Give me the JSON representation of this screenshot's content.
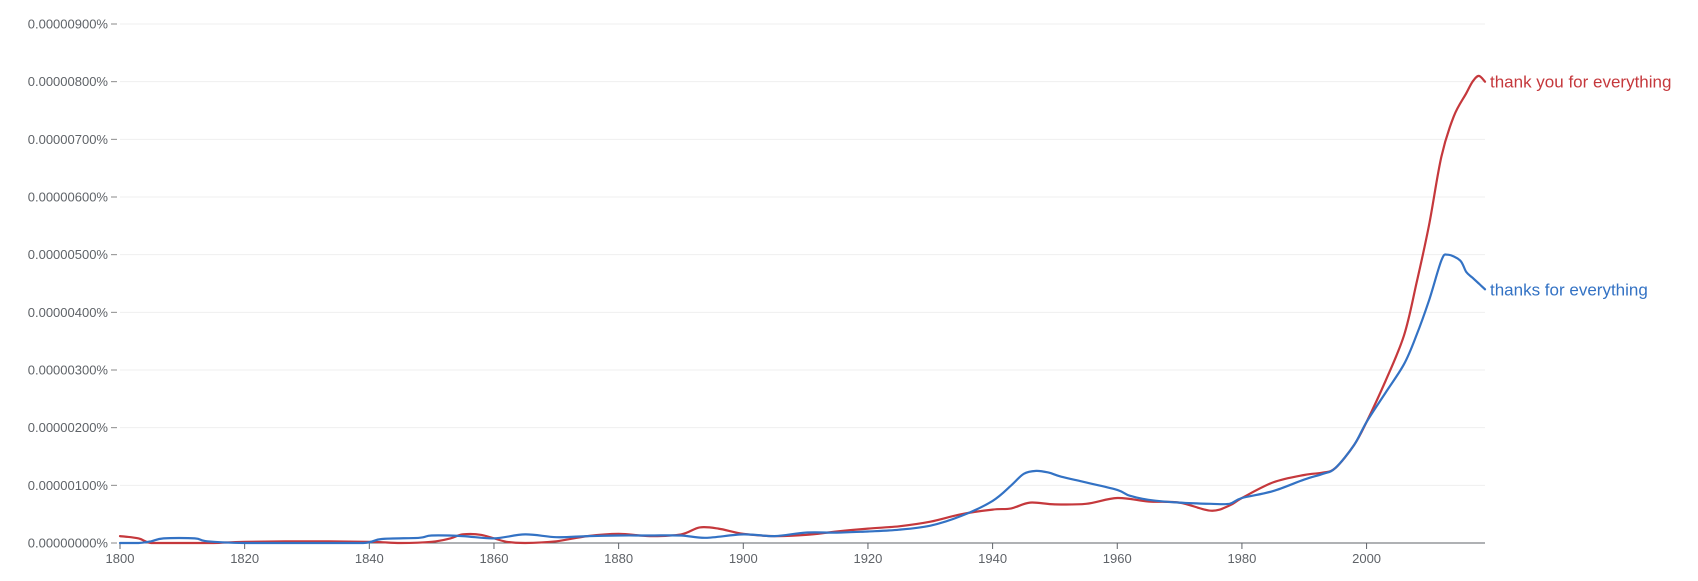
{
  "chart_data": {
    "type": "line",
    "title": "",
    "xlabel": "",
    "ylabel": "",
    "xlim": [
      1800,
      2019
    ],
    "ylim": [
      0,
      9e-06
    ],
    "grid": true,
    "legend": "inline-right",
    "x_ticks": [
      1800,
      1820,
      1840,
      1860,
      1880,
      1900,
      1920,
      1940,
      1960,
      1980,
      2000
    ],
    "x_tick_labels": [
      "1800",
      "1820",
      "1840",
      "1860",
      "1880",
      "1900",
      "1920",
      "1940",
      "1960",
      "1980",
      "2000"
    ],
    "y_ticks": [
      0,
      1e-06,
      2e-06,
      3e-06,
      4e-06,
      5e-06,
      6e-06,
      7e-06,
      8e-06,
      9e-06
    ],
    "y_tick_labels": [
      "0.00000000%",
      "0.00000100%",
      "0.00000200%",
      "0.00000300%",
      "0.00000400%",
      "0.00000500%",
      "0.00000600%",
      "0.00000700%",
      "0.00000800%",
      "0.00000900%"
    ],
    "series": [
      {
        "name": "thank you for everything",
        "color": "#c5383c",
        "x": [
          1800,
          1803,
          1805,
          1810,
          1815,
          1820,
          1830,
          1840,
          1845,
          1850,
          1853,
          1855,
          1858,
          1862,
          1865,
          1870,
          1875,
          1880,
          1885,
          1890,
          1893,
          1896,
          1900,
          1905,
          1910,
          1915,
          1920,
          1925,
          1930,
          1935,
          1940,
          1943,
          1946,
          1950,
          1955,
          1960,
          1965,
          1970,
          1975,
          1978,
          1980,
          1985,
          1990,
          1993,
          1995,
          1998,
          2000,
          2003,
          2006,
          2008,
          2010,
          2012,
          2014,
          2016,
          2017,
          2018,
          2019
        ],
        "y": [
          1.2e-07,
          8e-08,
          0.0,
          0.0,
          0.0,
          2e-08,
          3e-08,
          2e-08,
          0.0,
          2e-08,
          8e-08,
          1.5e-07,
          1.4e-07,
          2e-08,
          0.0,
          3e-08,
          1.2e-07,
          1.6e-07,
          1.2e-07,
          1.5e-07,
          2.7e-07,
          2.5e-07,
          1.6e-07,
          1.2e-07,
          1.4e-07,
          2e-07,
          2.5e-07,
          2.9e-07,
          3.7e-07,
          5e-07,
          5.8e-07,
          6e-07,
          7e-07,
          6.7e-07,
          6.8e-07,
          7.8e-07,
          7.2e-07,
          7e-07,
          5.6e-07,
          6.5e-07,
          7.8e-07,
          1.05e-06,
          1.18e-06,
          1.22e-06,
          1.3e-06,
          1.7e-06,
          2.1e-06,
          2.8e-06,
          3.6e-06,
          4.5e-06,
          5.5e-06,
          6.7e-06,
          7.4e-06,
          7.8e-06,
          8e-06,
          8.1e-06,
          8e-06
        ]
      },
      {
        "name": "thanks for everything",
        "color": "#3372c4",
        "x": [
          1800,
          1803,
          1805,
          1807,
          1812,
          1814,
          1820,
          1830,
          1839,
          1842,
          1848,
          1850,
          1855,
          1860,
          1865,
          1870,
          1875,
          1880,
          1885,
          1890,
          1894,
          1900,
          1905,
          1910,
          1915,
          1920,
          1925,
          1930,
          1935,
          1940,
          1943,
          1945,
          1947,
          1949,
          1951,
          1955,
          1960,
          1962,
          1965,
          1970,
          1975,
          1978,
          1980,
          1985,
          1990,
          1993,
          1995,
          1998,
          2000,
          2003,
          2006,
          2008,
          2010,
          2012,
          2013,
          2015,
          2016,
          2017,
          2018,
          2019
        ],
        "y": [
          0.0,
          0.0,
          3e-08,
          8e-08,
          8e-08,
          3e-08,
          0.0,
          0.0,
          0.0,
          7e-08,
          9e-08,
          1.3e-07,
          1.2e-07,
          8e-08,
          1.5e-07,
          1e-07,
          1.2e-07,
          1.3e-07,
          1.3e-07,
          1.3e-07,
          9e-08,
          1.5e-07,
          1.2e-07,
          1.8e-07,
          1.8e-07,
          2e-07,
          2.3e-07,
          3e-07,
          4.7e-07,
          7.3e-07,
          1e-06,
          1.2e-06,
          1.25e-06,
          1.22e-06,
          1.15e-06,
          1.05e-06,
          9.2e-07,
          8.2e-07,
          7.5e-07,
          7e-07,
          6.8e-07,
          6.8e-07,
          7.8e-07,
          9e-07,
          1.1e-06,
          1.2e-06,
          1.3e-06,
          1.7e-06,
          2.1e-06,
          2.6e-06,
          3.1e-06,
          3.6e-06,
          4.2e-06,
          4.9e-06,
          5e-06,
          4.9e-06,
          4.7e-06,
          4.6e-06,
          4.5e-06,
          4.4e-06
        ]
      }
    ]
  }
}
